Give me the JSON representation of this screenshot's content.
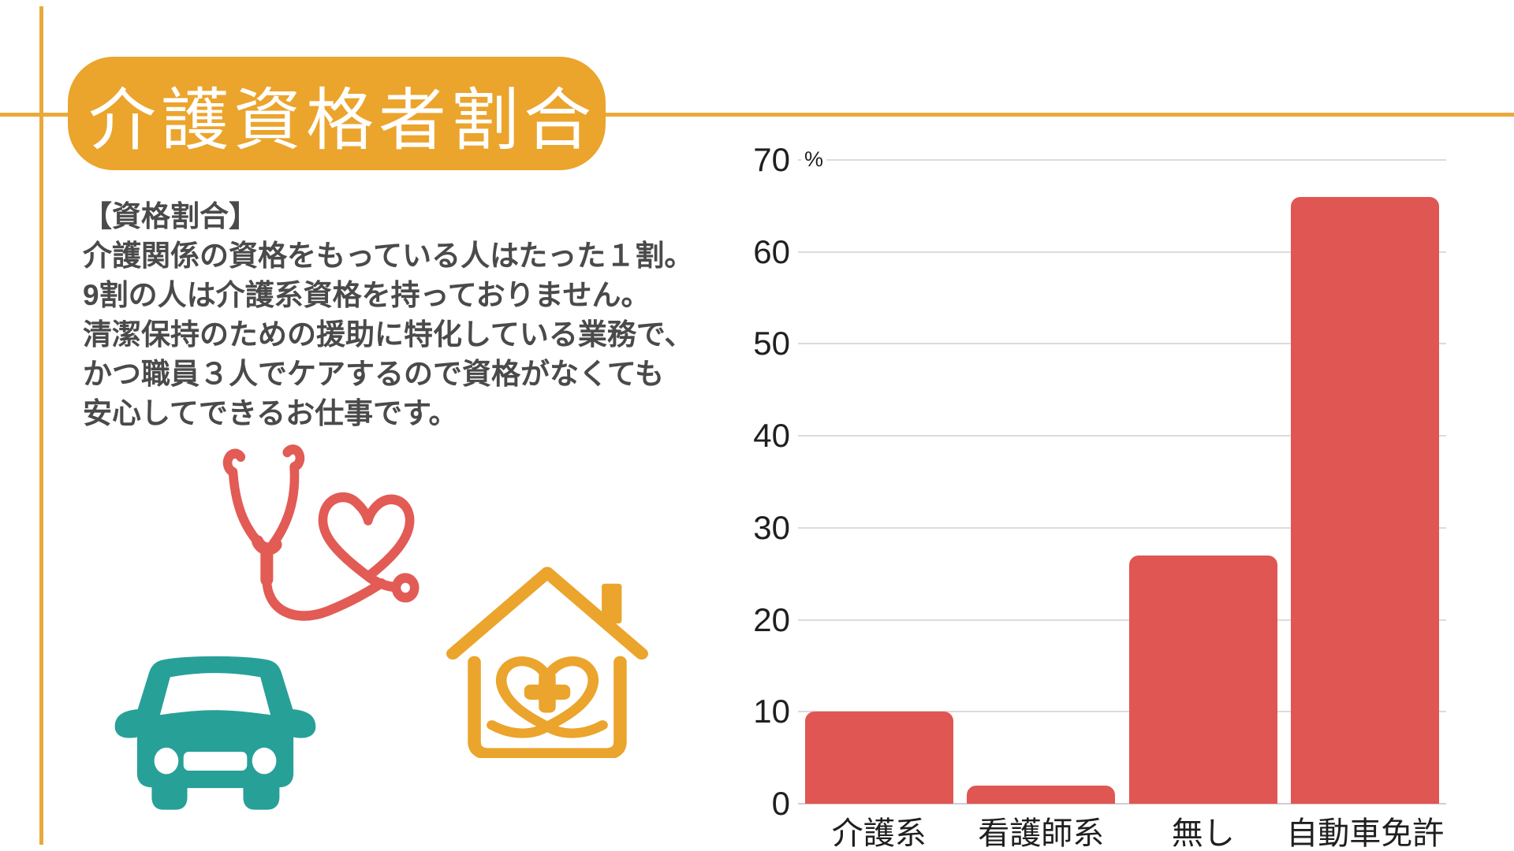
{
  "header": {
    "title": "介護資格者割合"
  },
  "description": {
    "lines": [
      "【資格割合】",
      "介護関係の資格をもっている人はたった１割。",
      "9割の人は介護系資格を持っておりません。",
      "清潔保持のための援助に特化している業務で、",
      "かつ職員３人でケアするので資格がなくても",
      "安心してできるお仕事です。"
    ]
  },
  "icons": {
    "stethoscope_heart": "stethoscope-heart-icon",
    "house_heart_cross": "house-heart-cross-icon",
    "car": "car-icon"
  },
  "colors": {
    "accent_orange": "#EBA42C",
    "line_orange": "#E9A93B",
    "bar_red": "#E05653",
    "icon_red": "#E25B55",
    "icon_teal": "#27A098",
    "body_text": "#4A4A4A",
    "axis_text": "#1F1F1F",
    "gridline": "#DBDBDB",
    "background": "#FFFFFF"
  },
  "chart_data": {
    "type": "bar",
    "title": "",
    "xlabel": "",
    "ylabel": "",
    "unit": "%",
    "categories": [
      "介護系",
      "看護師系",
      "無し",
      "自動車免許"
    ],
    "values": [
      10,
      2,
      27,
      66
    ],
    "ylim": [
      0,
      70
    ],
    "ytick_step": 10,
    "grid": true,
    "legend": false,
    "bar_color": "#E05653"
  }
}
